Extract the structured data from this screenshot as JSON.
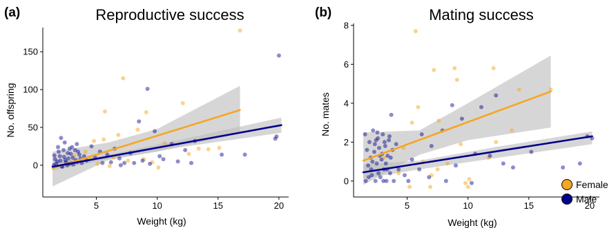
{
  "chart_data": [
    {
      "panel": "(a)",
      "type": "scatter",
      "title": "Reproductive success",
      "xlabel": "Weight (kg)",
      "ylabel": "No. offspring",
      "xlim": [
        0.6,
        20.8
      ],
      "ylim": [
        -42,
        182
      ],
      "xticks": [
        5,
        10,
        15,
        20
      ],
      "yticks": [
        0,
        50,
        100,
        150
      ],
      "grid": false,
      "series": [
        {
          "name": "Female",
          "color": "#f5a623",
          "points": [
            [
              16.8,
              178
            ],
            [
              7.2,
              115
            ],
            [
              12.1,
              82
            ],
            [
              5.7,
              71
            ],
            [
              9.1,
              70
            ],
            [
              8.4,
              47
            ],
            [
              6.8,
              40
            ],
            [
              4.8,
              32
            ],
            [
              5.6,
              34
            ],
            [
              10.6,
              29
            ],
            [
              14.2,
              21
            ],
            [
              13.4,
              22
            ],
            [
              15.1,
              23
            ],
            [
              4.1,
              18
            ],
            [
              3.2,
              13
            ],
            [
              6.4,
              10
            ],
            [
              8.9,
              8
            ],
            [
              9.6,
              4
            ],
            [
              10.1,
              -3
            ],
            [
              5.1,
              2
            ],
            [
              7.6,
              6
            ],
            [
              3.6,
              5
            ],
            [
              2.8,
              1
            ],
            [
              6.1,
              -1
            ],
            [
              4.4,
              8
            ],
            [
              12.6,
              15
            ]
          ],
          "trend": {
            "x": [
              1.4,
              16.8
            ],
            "y": [
              -4,
              73
            ]
          },
          "ci": {
            "x": [
              1.4,
              6,
              10,
              16.8
            ],
            "upper": [
              18,
              30,
              48,
              105
            ],
            "lower": [
              -28,
              7,
              18,
              42
            ]
          }
        },
        {
          "name": "Male",
          "color": "#00008b",
          "points": [
            [
              20.0,
              145
            ],
            [
              9.2,
              101
            ],
            [
              8.5,
              58
            ],
            [
              19.7,
              35
            ],
            [
              19.8,
              38
            ],
            [
              17.2,
              14
            ],
            [
              12.3,
              20
            ],
            [
              9.8,
              45
            ],
            [
              11.2,
              28
            ],
            [
              13.1,
              32
            ],
            [
              15.3,
              14
            ],
            [
              10.5,
              8
            ],
            [
              7.8,
              16
            ],
            [
              6.5,
              22
            ],
            [
              8.1,
              3
            ],
            [
              7.0,
              0
            ],
            [
              11.7,
              5
            ],
            [
              12.8,
              3
            ],
            [
              10.2,
              12
            ],
            [
              5.3,
              18
            ],
            [
              4.6,
              25
            ],
            [
              4.0,
              12
            ],
            [
              3.4,
              28
            ],
            [
              2.8,
              22
            ],
            [
              2.4,
              30
            ],
            [
              2.1,
              36
            ],
            [
              1.8,
              5
            ],
            [
              2.0,
              12
            ],
            [
              2.2,
              -2
            ],
            [
              2.5,
              4
            ],
            [
              2.7,
              9
            ],
            [
              2.9,
              15
            ],
            [
              3.1,
              1
            ],
            [
              3.3,
              7
            ],
            [
              3.5,
              18
            ],
            [
              3.8,
              3
            ],
            [
              4.2,
              6
            ],
            [
              4.9,
              10
            ],
            [
              5.5,
              3
            ],
            [
              5.9,
              14
            ],
            [
              6.2,
              4
            ],
            [
              6.9,
              9
            ],
            [
              7.3,
              3
            ],
            [
              8.8,
              6
            ],
            [
              9.4,
              2
            ],
            [
              1.5,
              0
            ],
            [
              1.6,
              8
            ],
            [
              1.9,
              18
            ],
            [
              2.3,
              20
            ],
            [
              2.6,
              0
            ],
            [
              3.0,
              24
            ],
            [
              3.6,
              14
            ],
            [
              1.7,
              2
            ],
            [
              2.05,
              6
            ],
            [
              2.35,
              11
            ],
            [
              2.65,
              16
            ],
            [
              2.95,
              3
            ],
            [
              3.25,
              20
            ],
            [
              1.55,
              13
            ],
            [
              1.85,
              24
            ],
            [
              2.15,
              -1
            ],
            [
              2.45,
              7
            ],
            [
              2.75,
              2
            ],
            [
              3.05,
              10
            ],
            [
              3.4,
              4
            ],
            [
              3.7,
              9
            ]
          ],
          "trend": {
            "x": [
              1.4,
              20.2
            ],
            "y": [
              -2,
              53
            ]
          },
          "ci": {
            "x": [
              1.4,
              6,
              12,
              20.2
            ],
            "upper": [
              4,
              14,
              34,
              63
            ],
            "lower": [
              -7,
              8,
              24,
              43
            ]
          }
        }
      ]
    },
    {
      "panel": "(b)",
      "type": "scatter",
      "title": "Mating success",
      "xlabel": "Weight (kg)",
      "ylabel": "No. mates",
      "xlim": [
        0.6,
        20.8
      ],
      "ylim": [
        -0.82,
        8.1
      ],
      "xticks": [
        5,
        10,
        15,
        20
      ],
      "yticks": [
        0,
        2,
        4,
        6,
        8
      ],
      "grid": false,
      "legend": {
        "position": "right",
        "entries": [
          "Female",
          "Male"
        ]
      },
      "series": [
        {
          "name": "Female",
          "color": "#f5a623",
          "points": [
            [
              5.7,
              7.7
            ],
            [
              7.2,
              5.7
            ],
            [
              8.9,
              5.8
            ],
            [
              12.1,
              5.8
            ],
            [
              16.8,
              4.7
            ],
            [
              14.2,
              4.7
            ],
            [
              9.1,
              5.2
            ],
            [
              5.9,
              3.8
            ],
            [
              7.6,
              3.1
            ],
            [
              5.4,
              3.0
            ],
            [
              13.6,
              2.6
            ],
            [
              9.4,
              1.9
            ],
            [
              11.7,
              1.2
            ],
            [
              4.7,
              1.7
            ],
            [
              6.3,
              1.0
            ],
            [
              7.0,
              0.3
            ],
            [
              10.1,
              0.1
            ],
            [
              7.5,
              0.6
            ],
            [
              4.3,
              0.4
            ],
            [
              5.2,
              -0.3
            ],
            [
              6.9,
              -0.3
            ],
            [
              9.8,
              -0.1
            ],
            [
              10.0,
              -0.3
            ],
            [
              8.3,
              0.9
            ],
            [
              3.1,
              1.2
            ],
            [
              12.3,
              2.0
            ]
          ],
          "trend": {
            "x": [
              1.4,
              16.8
            ],
            "y": [
              1.05,
              4.6
            ]
          },
          "ci": {
            "x": [
              1.4,
              6,
              10,
              16.8
            ],
            "upper": [
              2.5,
              2.6,
              4.0,
              6.45
            ],
            "lower": [
              -0.2,
              1.35,
              2.1,
              2.75
            ]
          }
        },
        {
          "name": "Male",
          "color": "#00008b",
          "points": [
            [
              20.2,
              2.2
            ],
            [
              19.8,
              2.3
            ],
            [
              12.3,
              4.4
            ],
            [
              11.1,
              3.8
            ],
            [
              8.7,
              3.9
            ],
            [
              7.9,
              2.6
            ],
            [
              9.5,
              3.2
            ],
            [
              10.6,
              1.4
            ],
            [
              12.9,
              0.9
            ],
            [
              13.7,
              0.7
            ],
            [
              15.2,
              1.5
            ],
            [
              17.8,
              0.7
            ],
            [
              19.2,
              0.9
            ],
            [
              11.8,
              1.3
            ],
            [
              6.2,
              2.4
            ],
            [
              7.0,
              1.8
            ],
            [
              6.8,
              0.2
            ],
            [
              8.2,
              0.0
            ],
            [
              9.0,
              0.8
            ],
            [
              10.3,
              -0.1
            ],
            [
              5.4,
              1.1
            ],
            [
              4.8,
              0.3
            ],
            [
              4.1,
              1.9
            ],
            [
              3.7,
              3.4
            ],
            [
              4.3,
              0.6
            ],
            [
              5.1,
              0.0
            ],
            [
              6.0,
              0.6
            ],
            [
              1.6,
              0.0
            ],
            [
              1.8,
              0.8
            ],
            [
              1.9,
              2.0
            ],
            [
              2.0,
              1.2
            ],
            [
              2.1,
              0.3
            ],
            [
              2.2,
              2.6
            ],
            [
              2.3,
              1.5
            ],
            [
              2.4,
              0.0
            ],
            [
              2.5,
              0.9
            ],
            [
              2.6,
              2.2
            ],
            [
              2.7,
              1.7
            ],
            [
              2.8,
              0.2
            ],
            [
              2.9,
              1.1
            ],
            [
              3.0,
              2.4
            ],
            [
              3.1,
              0.6
            ],
            [
              3.2,
              1.8
            ],
            [
              3.3,
              0.0
            ],
            [
              3.4,
              1.3
            ],
            [
              3.5,
              2.1
            ],
            [
              3.6,
              0.4
            ],
            [
              3.8,
              1.6
            ],
            [
              3.9,
              0.0
            ],
            [
              1.7,
              1.6
            ],
            [
              2.05,
              0.6
            ],
            [
              2.35,
              1.9
            ],
            [
              2.65,
              0.4
            ],
            [
              2.95,
              1.4
            ],
            [
              3.25,
              0.9
            ],
            [
              3.55,
              2.3
            ],
            [
              1.85,
              0.2
            ],
            [
              2.15,
              1.0
            ],
            [
              2.45,
              2.1
            ],
            [
              2.75,
              1.3
            ],
            [
              3.05,
              0.0
            ],
            [
              3.35,
              0.6
            ],
            [
              3.65,
              1.2
            ],
            [
              1.55,
              2.4
            ],
            [
              2.55,
              2.5
            ],
            [
              3.15,
              2.0
            ]
          ],
          "trend": {
            "x": [
              1.4,
              20.2
            ],
            "y": [
              0.45,
              2.3
            ]
          },
          "ci": {
            "x": [
              1.4,
              6,
              12,
              20.2
            ],
            "upper": [
              0.85,
              1.05,
              1.72,
              2.55
            ],
            "lower": [
              0.12,
              0.6,
              1.15,
              1.9
            ]
          }
        }
      ]
    }
  ]
}
